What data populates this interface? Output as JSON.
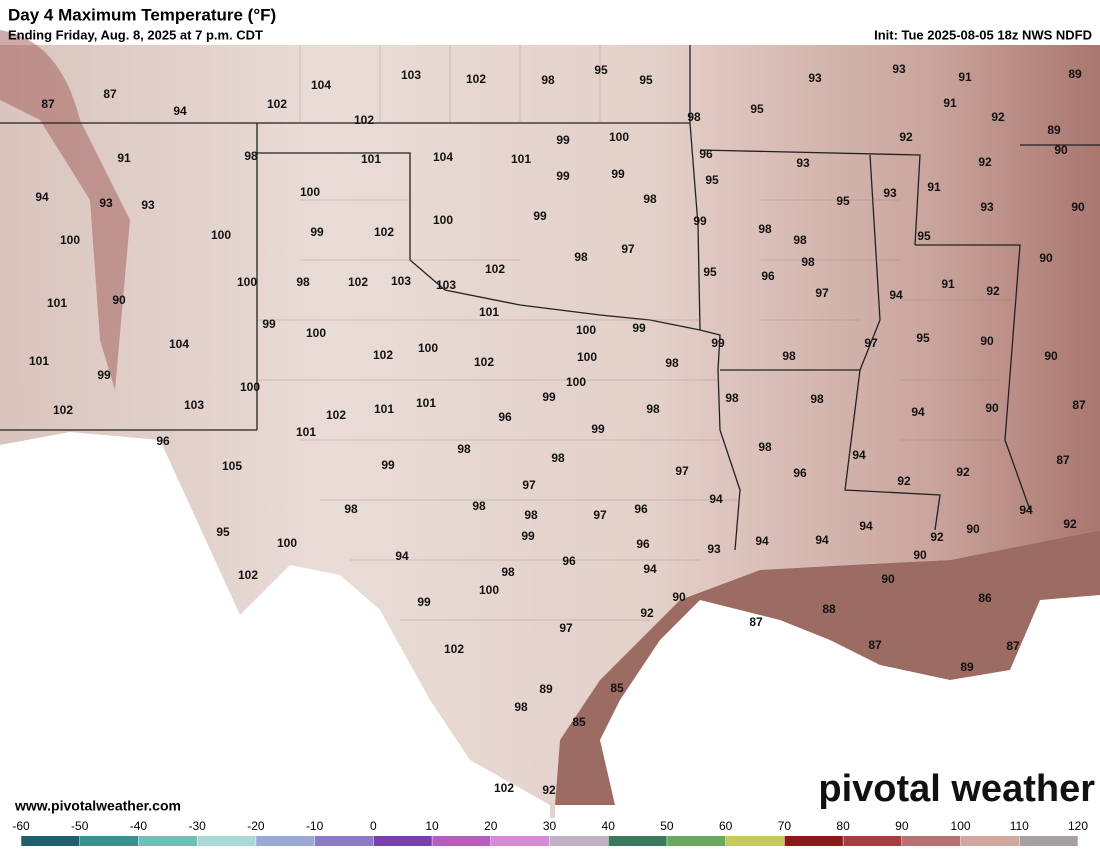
{
  "header": {
    "title": "Day 4 Maximum Temperature (°F)",
    "subtitle": "Ending Friday, Aug. 8, 2025 at 7 p.m. CDT",
    "init": "Init: Tue 2025-08-05 18z NWS NDFD"
  },
  "map": {
    "labels": [
      104,
      103,
      102,
      98,
      95,
      95,
      93,
      93,
      91,
      89,
      87,
      87,
      94,
      102,
      102,
      91,
      92,
      98,
      95,
      99,
      100,
      101,
      104,
      101,
      98,
      91,
      96,
      93,
      92,
      89,
      92,
      90,
      99,
      99,
      95,
      100,
      93,
      93,
      94,
      98,
      95,
      93,
      91,
      93,
      90,
      99,
      100,
      99,
      102,
      100,
      100,
      99,
      98,
      98,
      95,
      97,
      98,
      102,
      98,
      96,
      95,
      90,
      91,
      92,
      100,
      98,
      102,
      103,
      103,
      101,
      90,
      97,
      94,
      99,
      100,
      101,
      100,
      99,
      104,
      102,
      100,
      102,
      100,
      98,
      99,
      97,
      95,
      90,
      90,
      98,
      101,
      99,
      100,
      100,
      99,
      98,
      98,
      103,
      102,
      102,
      101,
      101,
      96,
      98,
      94,
      90,
      87,
      101,
      99,
      96,
      98,
      98,
      94,
      87,
      105,
      99,
      98,
      97,
      96,
      92,
      92,
      97,
      98,
      94,
      98,
      98,
      97,
      96,
      94,
      94,
      90,
      92,
      95,
      99,
      100,
      96,
      94,
      94,
      92,
      93,
      90,
      94,
      96,
      102,
      98,
      94,
      90,
      90,
      100,
      86,
      99,
      92,
      88,
      87,
      97,
      87,
      87,
      102,
      89,
      89,
      85,
      98,
      85,
      102,
      92
    ]
  },
  "footer": {
    "website": "www.pivotalweather.com",
    "logo": "pivotal weather"
  },
  "colorbar": {
    "ticks": [
      -60,
      -50,
      -40,
      -30,
      -20,
      -10,
      0,
      10,
      20,
      30,
      40,
      50,
      60,
      70,
      80,
      90,
      100,
      110,
      120
    ]
  }
}
